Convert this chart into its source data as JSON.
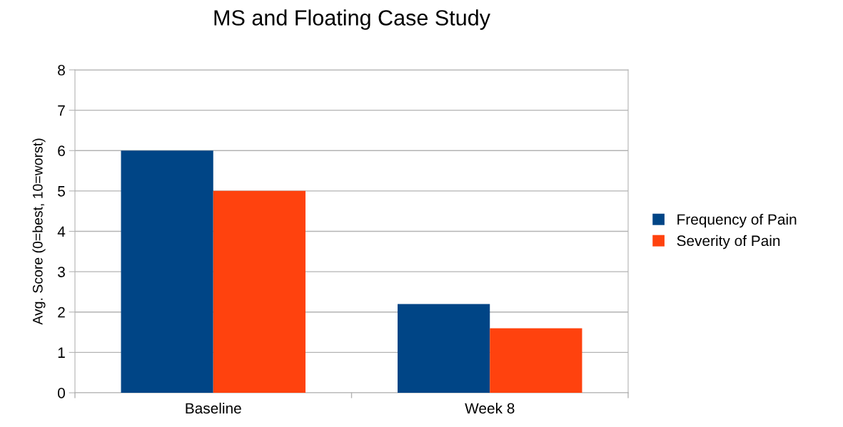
{
  "chart_data": {
    "type": "bar",
    "title": "MS and Floating Case Study",
    "ylabel": "Avg. Score (0=best, 10=worst)",
    "categories": [
      "Baseline",
      "Week 8"
    ],
    "series": [
      {
        "name": "Frequency of Pain",
        "color": "#004586",
        "values": [
          6,
          2.2
        ]
      },
      {
        "name": "Severity of Pain",
        "color": "#ff420e",
        "values": [
          5,
          1.6
        ]
      }
    ],
    "ylim": [
      0,
      8
    ],
    "yticks": [
      0,
      1,
      2,
      3,
      4,
      5,
      6,
      7,
      8
    ],
    "grid": "y",
    "legend": "right"
  }
}
